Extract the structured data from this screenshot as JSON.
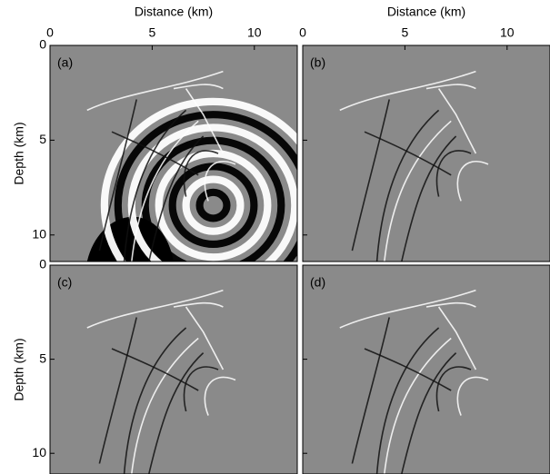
{
  "x_axis": {
    "label": "Distance (km)",
    "ticks": [
      0,
      5,
      10
    ],
    "lim": [
      0,
      12.1
    ]
  },
  "y_axis": {
    "label": "Depth (km)",
    "ticks": [
      0,
      5,
      10
    ]
  },
  "rows": [
    {
      "ylim": [
        0,
        11.4
      ]
    },
    {
      "ylim": [
        0,
        11.1
      ]
    }
  ],
  "panels": [
    {
      "label": "(a)"
    },
    {
      "label": "(b)"
    },
    {
      "label": "(c)"
    },
    {
      "label": "(d)"
    }
  ]
}
